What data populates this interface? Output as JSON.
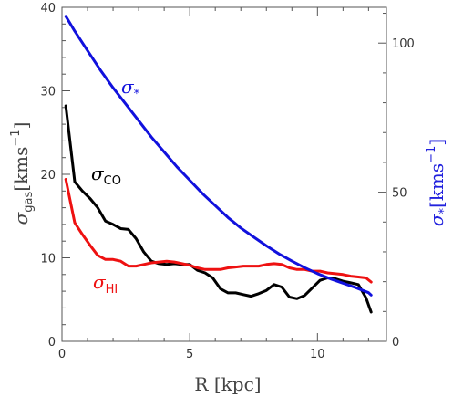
{
  "chart_data": {
    "type": "line",
    "xlabel": "R [kpc]",
    "ylabel_left": {
      "symbol": "σ",
      "sub": "gas",
      "units": "[kms",
      "exp": "−1",
      "close": "]"
    },
    "ylabel_right": {
      "symbol": "σ",
      "sub": "*",
      "units": "[kms",
      "exp": "−1",
      "close": "]"
    },
    "xlim": [
      0,
      12.7
    ],
    "ylim_left": [
      0,
      40
    ],
    "ylim_right": [
      0,
      112
    ],
    "x_ticks": [
      "0",
      "5",
      "10"
    ],
    "y_ticks_left": [
      "0",
      "10",
      "20",
      "30",
      "40"
    ],
    "y_ticks_right": [
      "0",
      "50",
      "100"
    ],
    "grid": false,
    "series": [
      {
        "name": "σCO",
        "label": {
          "symbol": "σ",
          "sub": "CO"
        },
        "axis": "left",
        "color": "#000000",
        "x": [
          0.15,
          0.5,
          0.8,
          1.1,
          1.4,
          1.7,
          2.0,
          2.3,
          2.6,
          2.9,
          3.2,
          3.5,
          3.8,
          4.1,
          4.4,
          4.7,
          5.0,
          5.3,
          5.6,
          5.9,
          6.2,
          6.5,
          6.8,
          7.1,
          7.4,
          7.7,
          8.0,
          8.3,
          8.6,
          8.9,
          9.2,
          9.5,
          9.8,
          10.1,
          10.4,
          10.7,
          11.0,
          11.3,
          11.6,
          11.9,
          12.1
        ],
        "y": [
          28.2,
          19.1,
          18.0,
          17.1,
          16.0,
          14.4,
          14.0,
          13.5,
          13.4,
          12.3,
          10.7,
          9.6,
          9.3,
          9.2,
          9.3,
          9.2,
          9.2,
          8.5,
          8.2,
          7.6,
          6.3,
          5.8,
          5.8,
          5.6,
          5.4,
          5.7,
          6.1,
          6.8,
          6.5,
          5.3,
          5.1,
          5.5,
          6.4,
          7.3,
          7.6,
          7.5,
          7.2,
          7.0,
          6.8,
          5.2,
          3.5
        ]
      },
      {
        "name": "σHI",
        "label": {
          "symbol": "σ",
          "sub": "HI"
        },
        "axis": "left",
        "color": "#ee1111",
        "x": [
          0.15,
          0.5,
          0.8,
          1.1,
          1.4,
          1.7,
          2.0,
          2.3,
          2.6,
          2.9,
          3.2,
          3.5,
          3.8,
          4.1,
          4.4,
          4.7,
          5.0,
          5.3,
          5.6,
          5.9,
          6.2,
          6.5,
          6.8,
          7.1,
          7.4,
          7.7,
          8.0,
          8.3,
          8.6,
          8.9,
          9.2,
          9.5,
          9.8,
          10.1,
          10.4,
          10.7,
          11.0,
          11.3,
          11.6,
          11.9,
          12.1
        ],
        "y": [
          19.4,
          14.2,
          12.8,
          11.5,
          10.3,
          9.8,
          9.8,
          9.6,
          9.0,
          9.0,
          9.2,
          9.4,
          9.5,
          9.6,
          9.5,
          9.3,
          9.1,
          8.8,
          8.6,
          8.6,
          8.6,
          8.8,
          8.9,
          9.0,
          9.0,
          9.0,
          9.2,
          9.3,
          9.2,
          8.8,
          8.6,
          8.6,
          8.4,
          8.4,
          8.2,
          8.1,
          8.0,
          7.8,
          7.7,
          7.6,
          7.1
        ]
      },
      {
        "name": "σ*",
        "label": {
          "symbol": "σ",
          "sub": "*"
        },
        "axis": "right",
        "color": "#1111dd",
        "x": [
          0.15,
          0.5,
          1.0,
          1.5,
          2.0,
          2.5,
          3.0,
          3.5,
          4.0,
          4.5,
          5.0,
          5.5,
          6.0,
          6.5,
          7.0,
          7.5,
          8.0,
          8.5,
          9.0,
          9.5,
          10.0,
          10.5,
          11.0,
          11.5,
          12.0,
          12.1
        ],
        "y": [
          109.0,
          104.0,
          97.5,
          91.0,
          85.0,
          79.5,
          74.0,
          68.5,
          63.5,
          58.5,
          54.0,
          49.5,
          45.5,
          41.5,
          38.0,
          35.0,
          32.0,
          29.3,
          26.9,
          24.7,
          22.7,
          21.0,
          19.5,
          18.0,
          16.3,
          15.5
        ]
      }
    ]
  }
}
